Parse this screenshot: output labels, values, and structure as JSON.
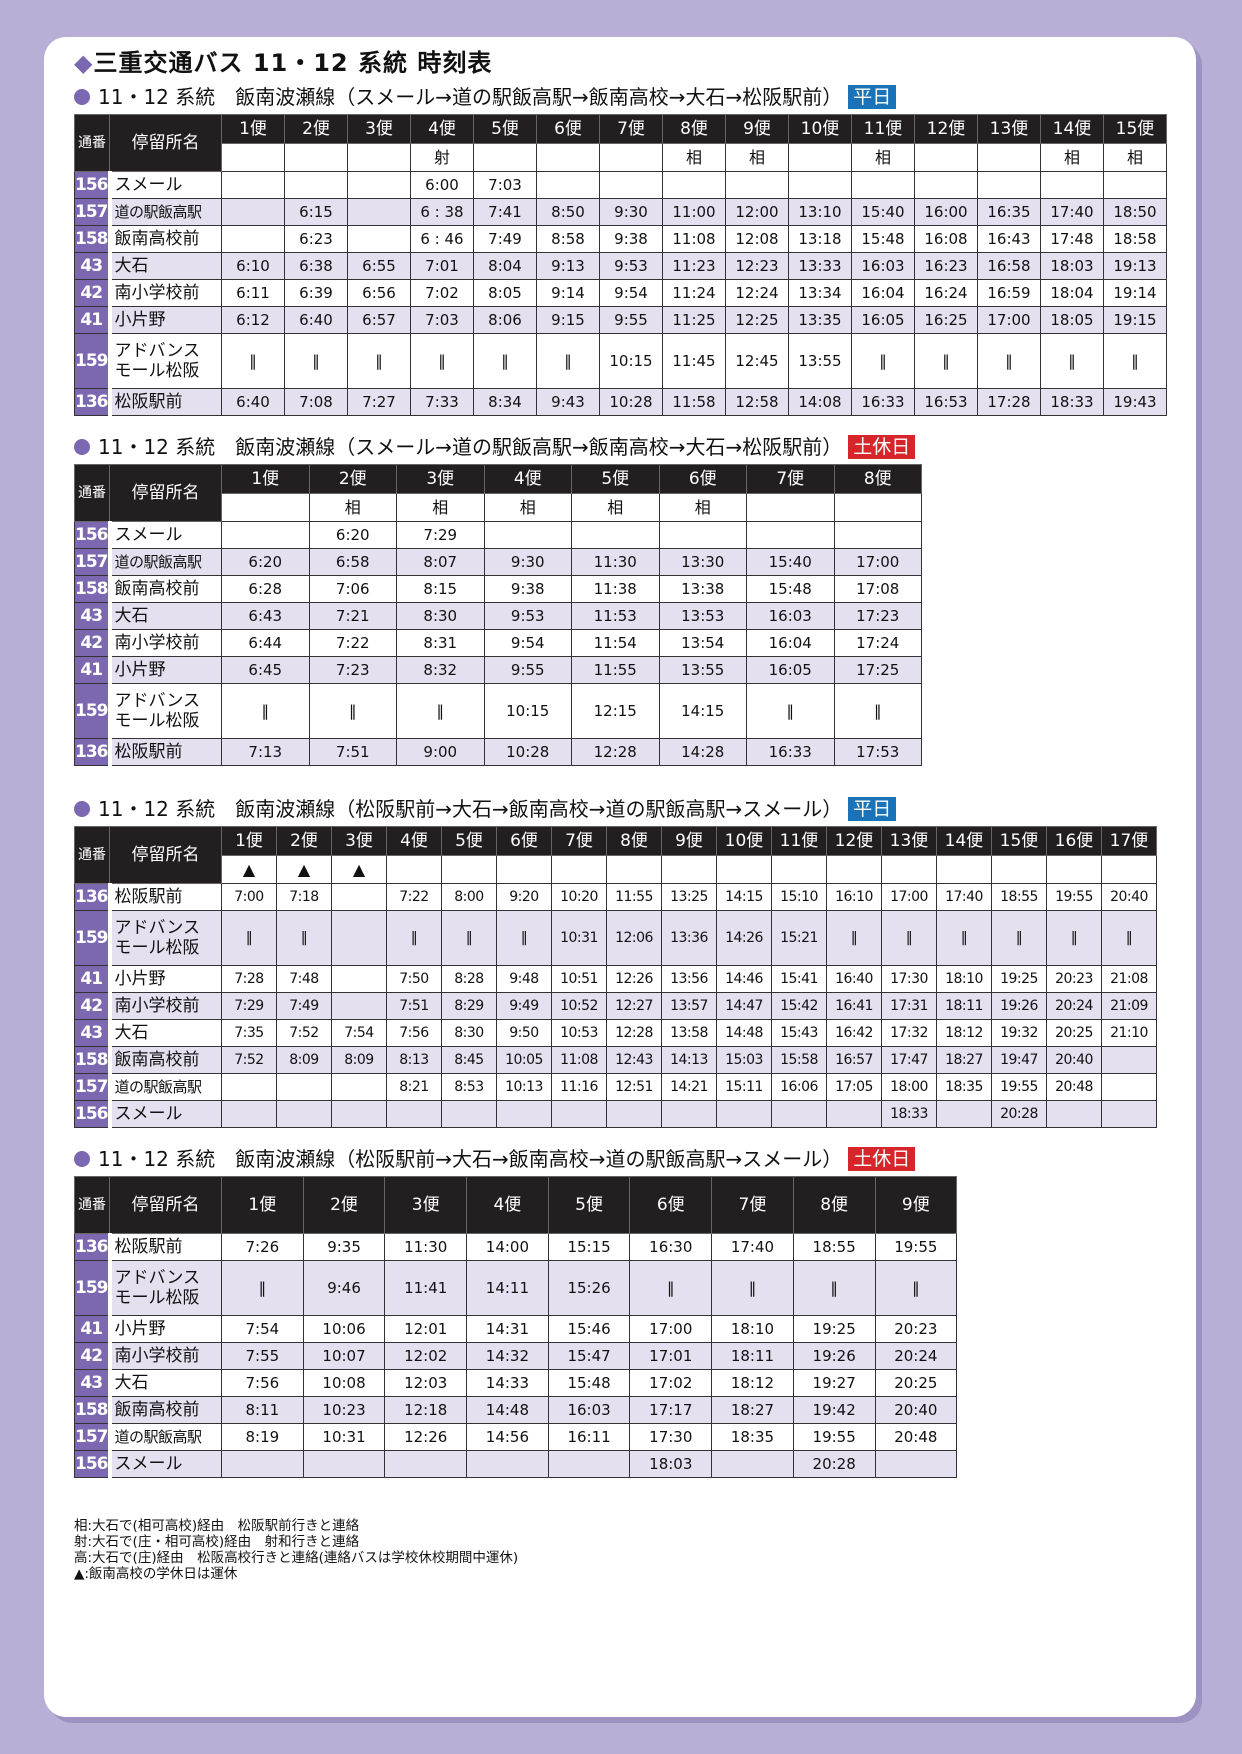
{
  "page": {
    "title_mark": "◆",
    "title": "三重交通バス 11・12 系統 時刻表",
    "header_no": "通番",
    "header_stop": "停留所名",
    "colors": {
      "accent": "#7b68b0",
      "weekday_badge": "#1a73b8",
      "holiday_badge": "#d7262b",
      "background": "#b8aed6",
      "shaded_row": "#e4e0ef"
    }
  },
  "tables": [
    {
      "title": "11・12 系統　飯南波瀬線（スメール→道の駅飯高駅→飯南高校→大石→松阪駅前）",
      "badge": "平日",
      "badge_color": "#1a73b8",
      "columns": [
        "1便",
        "2便",
        "3便",
        "4便",
        "5便",
        "6便",
        "7便",
        "8便",
        "9便",
        "10便",
        "11便",
        "12便",
        "13便",
        "14便",
        "15便"
      ],
      "notes": [
        "",
        "",
        "",
        "射",
        "",
        "",
        "",
        "相",
        "相",
        "",
        "相",
        "",
        "",
        "相",
        "相"
      ],
      "rows": [
        {
          "no": "156",
          "name": "スメール",
          "times": [
            "",
            "",
            "",
            "6:00",
            "7:03",
            "",
            "",
            "",
            "",
            "",
            "",
            "",
            "",
            "",
            ""
          ]
        },
        {
          "no": "157",
          "name": "道の駅飯高駅",
          "times": [
            "",
            "6:15",
            "",
            "6 : 38",
            "7:41",
            "8:50",
            "9:30",
            "11:00",
            "12:00",
            "13:10",
            "15:40",
            "16:00",
            "16:35",
            "17:40",
            "18:50"
          ]
        },
        {
          "no": "158",
          "name": "飯南高校前",
          "times": [
            "",
            "6:23",
            "",
            "6 : 46",
            "7:49",
            "8:58",
            "9:38",
            "11:08",
            "12:08",
            "13:18",
            "15:48",
            "16:08",
            "16:43",
            "17:48",
            "18:58"
          ]
        },
        {
          "no": "43",
          "name": "大石",
          "times": [
            "6:10",
            "6:38",
            "6:55",
            "7:01",
            "8:04",
            "9:13",
            "9:53",
            "11:23",
            "12:23",
            "13:33",
            "16:03",
            "16:23",
            "16:58",
            "18:03",
            "19:13"
          ]
        },
        {
          "no": "42",
          "name": "南小学校前",
          "times": [
            "6:11",
            "6:39",
            "6:56",
            "7:02",
            "8:05",
            "9:14",
            "9:54",
            "11:24",
            "12:24",
            "13:34",
            "16:04",
            "16:24",
            "16:59",
            "18:04",
            "19:14"
          ]
        },
        {
          "no": "41",
          "name": "小片野",
          "times": [
            "6:12",
            "6:40",
            "6:57",
            "7:03",
            "8:06",
            "9:15",
            "9:55",
            "11:25",
            "12:25",
            "13:35",
            "16:05",
            "16:25",
            "17:00",
            "18:05",
            "19:15"
          ]
        },
        {
          "no": "159",
          "name": "アドバンス\nモール松阪",
          "times": [
            "‖",
            "‖",
            "‖",
            "‖",
            "‖",
            "‖",
            "10:15",
            "11:45",
            "12:45",
            "13:55",
            "‖",
            "‖",
            "‖",
            "‖",
            "‖"
          ]
        },
        {
          "no": "136",
          "name": "松阪駅前",
          "times": [
            "6:40",
            "7:08",
            "7:27",
            "7:33",
            "8:34",
            "9:43",
            "10:28",
            "11:58",
            "12:58",
            "14:08",
            "16:33",
            "16:53",
            "17:28",
            "18:33",
            "19:43"
          ]
        }
      ]
    },
    {
      "title": "11・12 系統　飯南波瀬線（スメール→道の駅飯高駅→飯南高校→大石→松阪駅前）",
      "badge": "土休日",
      "badge_color": "#d7262b",
      "columns": [
        "1便",
        "2便",
        "3便",
        "4便",
        "5便",
        "6便",
        "7便",
        "8便"
      ],
      "notes": [
        "",
        "相",
        "相",
        "相",
        "相",
        "相",
        "",
        ""
      ],
      "rows": [
        {
          "no": "156",
          "name": "スメール",
          "times": [
            "",
            "6:20",
            "7:29",
            "",
            "",
            "",
            "",
            ""
          ]
        },
        {
          "no": "157",
          "name": "道の駅飯高駅",
          "times": [
            "6:20",
            "6:58",
            "8:07",
            "9:30",
            "11:30",
            "13:30",
            "15:40",
            "17:00"
          ]
        },
        {
          "no": "158",
          "name": "飯南高校前",
          "times": [
            "6:28",
            "7:06",
            "8:15",
            "9:38",
            "11:38",
            "13:38",
            "15:48",
            "17:08"
          ]
        },
        {
          "no": "43",
          "name": "大石",
          "times": [
            "6:43",
            "7:21",
            "8:30",
            "9:53",
            "11:53",
            "13:53",
            "16:03",
            "17:23"
          ]
        },
        {
          "no": "42",
          "name": "南小学校前",
          "times": [
            "6:44",
            "7:22",
            "8:31",
            "9:54",
            "11:54",
            "13:54",
            "16:04",
            "17:24"
          ]
        },
        {
          "no": "41",
          "name": "小片野",
          "times": [
            "6:45",
            "7:23",
            "8:32",
            "9:55",
            "11:55",
            "13:55",
            "16:05",
            "17:25"
          ]
        },
        {
          "no": "159",
          "name": "アドバンス\nモール松阪",
          "times": [
            "‖",
            "‖",
            "‖",
            "10:15",
            "12:15",
            "14:15",
            "‖",
            "‖"
          ]
        },
        {
          "no": "136",
          "name": "松阪駅前",
          "times": [
            "7:13",
            "7:51",
            "9:00",
            "10:28",
            "12:28",
            "14:28",
            "16:33",
            "17:53"
          ]
        }
      ]
    },
    {
      "title": "11・12 系統　飯南波瀬線（松阪駅前→大石→飯南高校→道の駅飯高駅→スメール）",
      "badge": "平日",
      "badge_color": "#1a73b8",
      "columns": [
        "1便",
        "2便",
        "3便",
        "4便",
        "5便",
        "6便",
        "7便",
        "8便",
        "9便",
        "10便",
        "11便",
        "12便",
        "13便",
        "14便",
        "15便",
        "16便",
        "17便"
      ],
      "notes": [
        "▲",
        "▲",
        "▲",
        "",
        "",
        "",
        "",
        "",
        "",
        "",
        "",
        "",
        "",
        "",
        "",
        "",
        ""
      ],
      "rows": [
        {
          "no": "136",
          "name": "松阪駅前",
          "times": [
            "7:00",
            "7:18",
            "",
            "7:22",
            "8:00",
            "9:20",
            "10:20",
            "11:55",
            "13:25",
            "14:15",
            "15:10",
            "16:10",
            "17:00",
            "17:40",
            "18:55",
            "19:55",
            "20:40"
          ]
        },
        {
          "no": "159",
          "name": "アドバンス\nモール松阪",
          "times": [
            "‖",
            "‖",
            "",
            "‖",
            "‖",
            "‖",
            "10:31",
            "12:06",
            "13:36",
            "14:26",
            "15:21",
            "‖",
            "‖",
            "‖",
            "‖",
            "‖",
            "‖"
          ]
        },
        {
          "no": "41",
          "name": "小片野",
          "times": [
            "7:28",
            "7:48",
            "",
            "7:50",
            "8:28",
            "9:48",
            "10:51",
            "12:26",
            "13:56",
            "14:46",
            "15:41",
            "16:40",
            "17:30",
            "18:10",
            "19:25",
            "20:23",
            "21:08"
          ]
        },
        {
          "no": "42",
          "name": "南小学校前",
          "times": [
            "7:29",
            "7:49",
            "",
            "7:51",
            "8:29",
            "9:49",
            "10:52",
            "12:27",
            "13:57",
            "14:47",
            "15:42",
            "16:41",
            "17:31",
            "18:11",
            "19:26",
            "20:24",
            "21:09"
          ]
        },
        {
          "no": "43",
          "name": "大石",
          "times": [
            "7:35",
            "7:52",
            "7:54",
            "7:56",
            "8:30",
            "9:50",
            "10:53",
            "12:28",
            "13:58",
            "14:48",
            "15:43",
            "16:42",
            "17:32",
            "18:12",
            "19:32",
            "20:25",
            "21:10"
          ]
        },
        {
          "no": "158",
          "name": "飯南高校前",
          "times": [
            "7:52",
            "8:09",
            "8:09",
            "8:13",
            "8:45",
            "10:05",
            "11:08",
            "12:43",
            "14:13",
            "15:03",
            "15:58",
            "16:57",
            "17:47",
            "18:27",
            "19:47",
            "20:40",
            ""
          ]
        },
        {
          "no": "157",
          "name": "道の駅飯高駅",
          "times": [
            "",
            "",
            "",
            "8:21",
            "8:53",
            "10:13",
            "11:16",
            "12:51",
            "14:21",
            "15:11",
            "16:06",
            "17:05",
            "18:00",
            "18:35",
            "19:55",
            "20:48",
            ""
          ]
        },
        {
          "no": "156",
          "name": "スメール",
          "times": [
            "",
            "",
            "",
            "",
            "",
            "",
            "",
            "",
            "",
            "",
            "",
            "",
            "18:33",
            "",
            "20:28",
            "",
            ""
          ]
        }
      ]
    },
    {
      "title": "11・12 系統　飯南波瀬線（松阪駅前→大石→飯南高校→道の駅飯高駅→スメール）",
      "badge": "土休日",
      "badge_color": "#d7262b",
      "columns": [
        "1便",
        "2便",
        "3便",
        "4便",
        "5便",
        "6便",
        "7便",
        "8便",
        "9便"
      ],
      "rows": [
        {
          "no": "136",
          "name": "松阪駅前",
          "times": [
            "7:26",
            "9:35",
            "11:30",
            "14:00",
            "15:15",
            "16:30",
            "17:40",
            "18:55",
            "19:55"
          ]
        },
        {
          "no": "159",
          "name": "アドバンス\nモール松阪",
          "times": [
            "‖",
            "9:46",
            "11:41",
            "14:11",
            "15:26",
            "‖",
            "‖",
            "‖",
            "‖"
          ]
        },
        {
          "no": "41",
          "name": "小片野",
          "times": [
            "7:54",
            "10:06",
            "12:01",
            "14:31",
            "15:46",
            "17:00",
            "18:10",
            "19:25",
            "20:23"
          ]
        },
        {
          "no": "42",
          "name": "南小学校前",
          "times": [
            "7:55",
            "10:07",
            "12:02",
            "14:32",
            "15:47",
            "17:01",
            "18:11",
            "19:26",
            "20:24"
          ]
        },
        {
          "no": "43",
          "name": "大石",
          "times": [
            "7:56",
            "10:08",
            "12:03",
            "14:33",
            "15:48",
            "17:02",
            "18:12",
            "19:27",
            "20:25"
          ]
        },
        {
          "no": "158",
          "name": "飯南高校前",
          "times": [
            "8:11",
            "10:23",
            "12:18",
            "14:48",
            "16:03",
            "17:17",
            "18:27",
            "19:42",
            "20:40"
          ]
        },
        {
          "no": "157",
          "name": "道の駅飯高駅",
          "times": [
            "8:19",
            "10:31",
            "12:26",
            "14:56",
            "16:11",
            "17:30",
            "18:35",
            "19:55",
            "20:48"
          ]
        },
        {
          "no": "156",
          "name": "スメール",
          "times": [
            "",
            "",
            "",
            "",
            "",
            "18:03",
            "",
            "20:28",
            ""
          ]
        }
      ]
    }
  ],
  "footnotes": [
    "相:大石で(相可高校)経由　松阪駅前行きと連絡",
    "射:大石で(庄・相可高校)経由　射和行きと連絡",
    "高:大石で(庄)経由　松阪高校行きと連絡(連絡バスは学校休校期間中運休)",
    "▲:飯南高校の学休日は運休"
  ]
}
